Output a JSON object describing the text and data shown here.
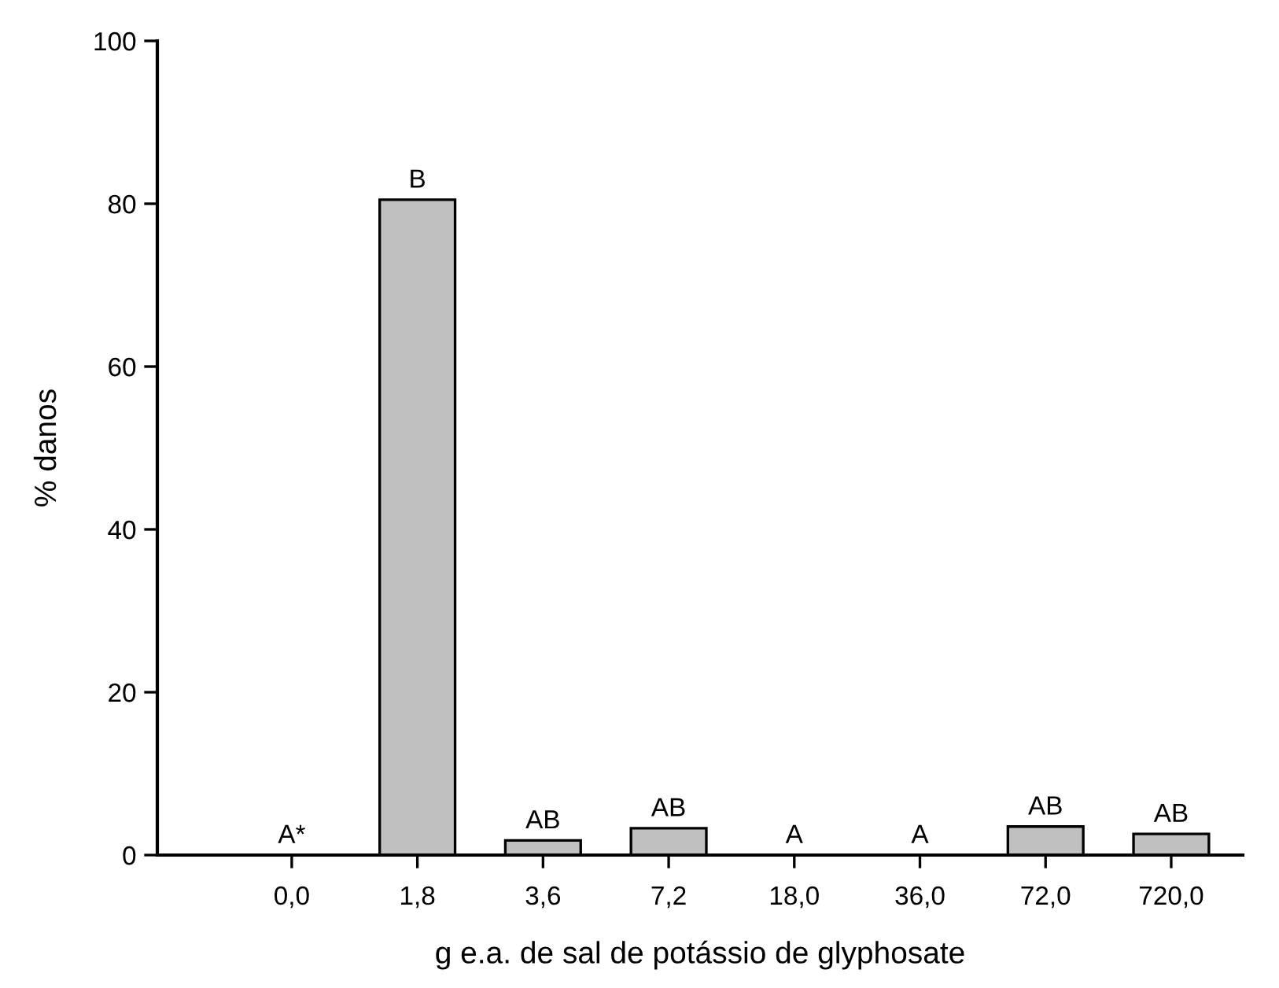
{
  "chart_data": {
    "type": "bar",
    "xlabel": "g e.a. de sal de potássio de glyphosate",
    "ylabel": "% danos",
    "categories": [
      "0,0",
      "1,8",
      "3,6",
      "7,2",
      "18,0",
      "36,0",
      "72,0",
      "720,0"
    ],
    "values": [
      0,
      80.5,
      1.8,
      3.3,
      0,
      0,
      3.5,
      2.6
    ],
    "value_labels": [
      "A*",
      "B",
      "AB",
      "AB",
      "A",
      "A",
      "AB",
      "AB"
    ],
    "color": "#c0c0c0",
    "ylim": [
      0,
      100
    ],
    "yticks": [
      0,
      20,
      40,
      60,
      80,
      100
    ],
    "grid": false,
    "legend": false
  }
}
